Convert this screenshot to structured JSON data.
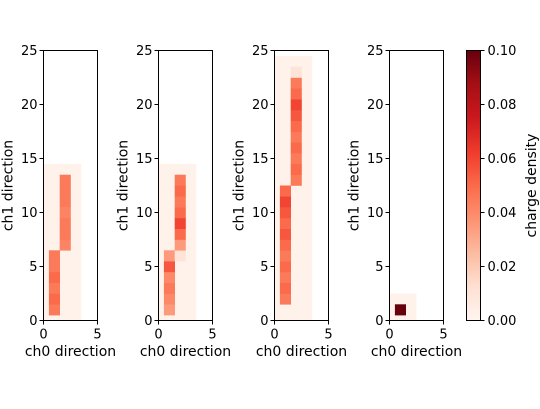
{
  "chart_data": [
    {
      "type": "heatmap",
      "title": "",
      "xlabel": "ch0 direction",
      "ylabel": "ch1 direction",
      "xlim": [
        0,
        5
      ],
      "ylim": [
        0,
        25
      ],
      "xticks": [
        "0",
        "5"
      ],
      "yticks": [
        "0",
        "5",
        "10",
        "15",
        "20",
        "25"
      ],
      "background_region": {
        "x": [
          0,
          3.5
        ],
        "y": [
          0,
          14.5
        ],
        "value": 0.002
      },
      "cells": [
        {
          "x": 0,
          "y": 0,
          "value": 0.045
        },
        {
          "x": 0,
          "y": 1,
          "value": 0.05
        },
        {
          "x": 0,
          "y": 2,
          "value": 0.045
        },
        {
          "x": 0,
          "y": 3,
          "value": 0.05
        },
        {
          "x": 0,
          "y": 4,
          "value": 0.045
        },
        {
          "x": 0,
          "y": 5,
          "value": 0.045
        },
        {
          "x": 1,
          "y": 6,
          "value": 0.042
        },
        {
          "x": 1,
          "y": 7,
          "value": 0.045
        },
        {
          "x": 1,
          "y": 8,
          "value": 0.045
        },
        {
          "x": 1,
          "y": 9,
          "value": 0.042
        },
        {
          "x": 1,
          "y": 10,
          "value": 0.045
        },
        {
          "x": 1,
          "y": 11,
          "value": 0.045
        },
        {
          "x": 1,
          "y": 12,
          "value": 0.045
        }
      ]
    },
    {
      "type": "heatmap",
      "title": "",
      "xlabel": "ch0 direction",
      "ylabel": "ch1 direction",
      "xlim": [
        0,
        5
      ],
      "ylim": [
        0,
        25
      ],
      "xticks": [
        "0",
        "5"
      ],
      "yticks": [
        "0",
        "5",
        "10",
        "15",
        "20",
        "25"
      ],
      "background_region": {
        "x": [
          0,
          3.5
        ],
        "y": [
          0,
          14.5
        ],
        "value": 0.002
      },
      "cells": [
        {
          "x": 0,
          "y": 0,
          "value": 0.035
        },
        {
          "x": 0,
          "y": 1,
          "value": 0.04
        },
        {
          "x": 0,
          "y": 2,
          "value": 0.045
        },
        {
          "x": 0,
          "y": 3,
          "value": 0.04
        },
        {
          "x": 0,
          "y": 4,
          "value": 0.055
        },
        {
          "x": 0,
          "y": 5,
          "value": 0.035
        },
        {
          "x": 1,
          "y": 5,
          "value": 0.01
        },
        {
          "x": 1,
          "y": 6,
          "value": 0.035
        },
        {
          "x": 1,
          "y": 7,
          "value": 0.05
        },
        {
          "x": 1,
          "y": 8,
          "value": 0.06
        },
        {
          "x": 1,
          "y": 9,
          "value": 0.05
        },
        {
          "x": 1,
          "y": 10,
          "value": 0.045
        },
        {
          "x": 1,
          "y": 11,
          "value": 0.05
        },
        {
          "x": 1,
          "y": 12,
          "value": 0.045
        }
      ]
    },
    {
      "type": "heatmap",
      "title": "",
      "xlabel": "ch0 direction",
      "ylabel": "ch1 direction",
      "xlim": [
        0,
        5
      ],
      "ylim": [
        0,
        25
      ],
      "xticks": [
        "0",
        "5"
      ],
      "yticks": [
        "0",
        "5",
        "10",
        "15",
        "20",
        "25"
      ],
      "background_region": {
        "x": [
          0,
          3.5
        ],
        "y": [
          0,
          24.5
        ],
        "value": 0.002
      },
      "cells": [
        {
          "x": 0,
          "y": 1,
          "value": 0.045
        },
        {
          "x": 0,
          "y": 2,
          "value": 0.05
        },
        {
          "x": 0,
          "y": 3,
          "value": 0.045
        },
        {
          "x": 0,
          "y": 4,
          "value": 0.05
        },
        {
          "x": 0,
          "y": 5,
          "value": 0.045
        },
        {
          "x": 0,
          "y": 6,
          "value": 0.05
        },
        {
          "x": 0,
          "y": 7,
          "value": 0.055
        },
        {
          "x": 0,
          "y": 8,
          "value": 0.05
        },
        {
          "x": 0,
          "y": 9,
          "value": 0.055
        },
        {
          "x": 0,
          "y": 10,
          "value": 0.06
        },
        {
          "x": 0,
          "y": 11,
          "value": 0.05
        },
        {
          "x": 1,
          "y": 12,
          "value": 0.045
        },
        {
          "x": 1,
          "y": 13,
          "value": 0.05
        },
        {
          "x": 1,
          "y": 14,
          "value": 0.045
        },
        {
          "x": 1,
          "y": 15,
          "value": 0.05
        },
        {
          "x": 1,
          "y": 16,
          "value": 0.045
        },
        {
          "x": 1,
          "y": 17,
          "value": 0.05
        },
        {
          "x": 1,
          "y": 18,
          "value": 0.055
        },
        {
          "x": 1,
          "y": 19,
          "value": 0.06
        },
        {
          "x": 1,
          "y": 20,
          "value": 0.05
        },
        {
          "x": 1,
          "y": 21,
          "value": 0.045
        },
        {
          "x": 1,
          "y": 22,
          "value": 0.01
        }
      ]
    },
    {
      "type": "heatmap",
      "title": "",
      "xlabel": "ch0 direction",
      "ylabel": "ch1 direction",
      "xlim": [
        0,
        5
      ],
      "ylim": [
        0,
        25
      ],
      "xticks": [
        "0",
        "5"
      ],
      "yticks": [
        "0",
        "5",
        "10",
        "15",
        "20",
        "25"
      ],
      "background_region": {
        "x": [
          0,
          2.5
        ],
        "y": [
          0,
          2.5
        ],
        "value": 0.002
      },
      "cells": [
        {
          "x": 0,
          "y": 0,
          "value": 0.1
        }
      ]
    }
  ],
  "colorbar": {
    "label": "charge density",
    "range": [
      0,
      0.1
    ],
    "ticks": [
      "0.00",
      "0.02",
      "0.04",
      "0.06",
      "0.08",
      "0.10"
    ],
    "colormap": "Reds",
    "colors": [
      "#fff5f0",
      "#fee0d2",
      "#fcbba1",
      "#fc9272",
      "#fb6a4a",
      "#ef3b2c",
      "#cb181d",
      "#a50f15",
      "#67000d"
    ]
  }
}
